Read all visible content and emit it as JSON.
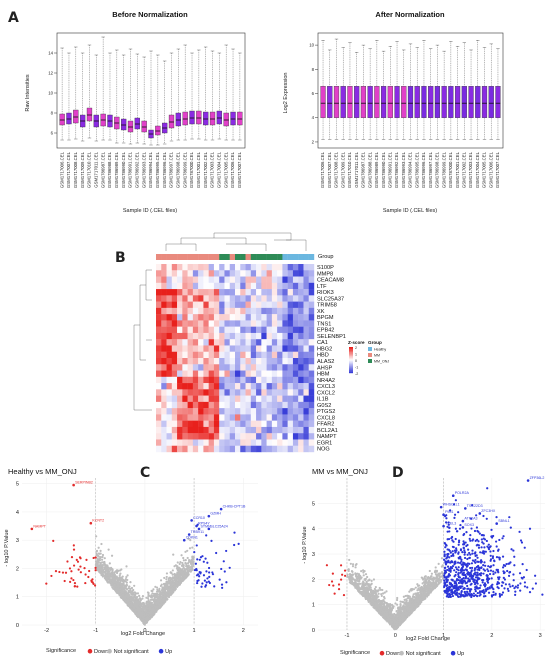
{
  "colors": {
    "box_pink": "#E040C8",
    "box_purple": "#8A2BE2",
    "box_violet": "#7A2BE0",
    "heat_high": "#E8201C",
    "heat_mid": "#FFFFFF",
    "heat_low": "#3A3FD8",
    "group_healthy": "#6BB7E0",
    "group_mm": "#E98A7E",
    "group_mm_onj": "#2E8B57",
    "volcano_down": "#E32B2B",
    "volcano_ns": "#BDBDBD",
    "volcano_up": "#2B35D8"
  },
  "panels": {
    "A": "A",
    "B": "B",
    "C": "C",
    "D": "D"
  },
  "chart_data": [
    {
      "type": "box",
      "panel": "A",
      "title": "Before Normalization",
      "xlabel": "Sample ID (.CEL files)",
      "ylabel": "Raw Intensities",
      "ylim": [
        4.5,
        16
      ],
      "yticks": [
        6,
        8,
        10,
        12,
        14
      ],
      "categories": [
        "GSM1717006.CEL",
        "GSM1717007.CEL",
        "GSM1717008.CEL",
        "GSM1717009.CEL",
        "GSM1717010.CEL",
        "GSM1717011.CEL",
        "GSM1786987.CEL",
        "GSM1786988.CEL",
        "GSM1786989.CEL",
        "GSM1786990.CEL",
        "GSM1786991.CEL",
        "GSM1786992.CEL",
        "GSM1786993.CEL",
        "GSM1786994.CEL",
        "GSM1786995.CEL",
        "GSM1786996.CEL",
        "GSM1786997.CEL",
        "GSM1786998.CEL",
        "GSM1786999.CEL",
        "GSM1787000.CEL",
        "GSM1717001.CEL",
        "GSM1717002.CEL",
        "GSM1717003.CEL",
        "GSM1717004.CEL",
        "GSM1717005.CEL",
        "GSM1717006.CEL",
        "GSM1717007.CEL"
      ],
      "boxes": [
        {
          "q1": 6.8,
          "med": 7.3,
          "q3": 7.9,
          "lo": 5.3,
          "hi": 14.5
        },
        {
          "q1": 6.9,
          "med": 7.4,
          "q3": 8.0,
          "lo": 5.3,
          "hi": 14.0
        },
        {
          "q1": 7.0,
          "med": 7.6,
          "q3": 8.3,
          "lo": 5.4,
          "hi": 14.6
        },
        {
          "q1": 6.6,
          "med": 7.2,
          "q3": 7.8,
          "lo": 5.2,
          "hi": 14.0
        },
        {
          "q1": 7.2,
          "med": 7.8,
          "q3": 8.5,
          "lo": 5.5,
          "hi": 14.8
        },
        {
          "q1": 6.6,
          "med": 7.2,
          "q3": 7.8,
          "lo": 5.2,
          "hi": 13.8
        },
        {
          "q1": 6.7,
          "med": 7.3,
          "q3": 7.9,
          "lo": 5.3,
          "hi": 15.6
        },
        {
          "q1": 6.6,
          "med": 7.2,
          "q3": 7.8,
          "lo": 5.3,
          "hi": 14.0
        },
        {
          "q1": 6.4,
          "med": 7.0,
          "q3": 7.6,
          "lo": 5.0,
          "hi": 14.3
        },
        {
          "q1": 6.3,
          "med": 6.8,
          "q3": 7.4,
          "lo": 5.0,
          "hi": 13.8
        },
        {
          "q1": 6.1,
          "med": 6.6,
          "q3": 7.2,
          "lo": 4.9,
          "hi": 14.4
        },
        {
          "q1": 6.4,
          "med": 6.9,
          "q3": 7.5,
          "lo": 5.0,
          "hi": 13.9
        },
        {
          "q1": 6.1,
          "med": 6.6,
          "q3": 7.2,
          "lo": 4.9,
          "hi": 13.6
        },
        {
          "q1": 5.5,
          "med": 5.9,
          "q3": 6.3,
          "lo": 4.8,
          "hi": 14.2
        },
        {
          "q1": 5.8,
          "med": 6.2,
          "q3": 6.7,
          "lo": 4.8,
          "hi": 13.8
        },
        {
          "q1": 6.0,
          "med": 6.5,
          "q3": 7.0,
          "lo": 4.9,
          "hi": 13.2
        },
        {
          "q1": 6.5,
          "med": 7.1,
          "q3": 7.8,
          "lo": 5.2,
          "hi": 14.0
        },
        {
          "q1": 6.7,
          "med": 7.3,
          "q3": 8.0,
          "lo": 5.3,
          "hi": 14.4
        },
        {
          "q1": 6.8,
          "med": 7.4,
          "q3": 8.1,
          "lo": 5.3,
          "hi": 14.8
        },
        {
          "q1": 6.9,
          "med": 7.5,
          "q3": 8.2,
          "lo": 5.4,
          "hi": 14.0
        },
        {
          "q1": 6.9,
          "med": 7.5,
          "q3": 8.2,
          "lo": 5.4,
          "hi": 14.3
        },
        {
          "q1": 6.8,
          "med": 7.4,
          "q3": 8.1,
          "lo": 5.3,
          "hi": 14.6
        },
        {
          "q1": 6.8,
          "med": 7.4,
          "q3": 8.1,
          "lo": 5.3,
          "hi": 14.2
        },
        {
          "q1": 6.9,
          "med": 7.5,
          "q3": 8.2,
          "lo": 5.4,
          "hi": 14.0
        },
        {
          "q1": 6.7,
          "med": 7.3,
          "q3": 8.0,
          "lo": 5.3,
          "hi": 14.8
        },
        {
          "q1": 6.8,
          "med": 7.4,
          "q3": 8.1,
          "lo": 5.3,
          "hi": 14.4
        },
        {
          "q1": 6.8,
          "med": 7.4,
          "q3": 8.1,
          "lo": 5.3,
          "hi": 14.0
        }
      ]
    },
    {
      "type": "box",
      "panel": "A",
      "title": "After Normalization",
      "xlabel": "Sample ID (.CEL files)",
      "ylabel": "Log2 Expression",
      "ylim": [
        1.5,
        11
      ],
      "yticks": [
        2,
        4,
        6,
        8,
        10
      ],
      "categories": [
        "GSM1717006.CEL",
        "GSM1717007.CEL",
        "GSM1717008.CEL",
        "GSM1717009.CEL",
        "GSM1717010.CEL",
        "GSM1717011.CEL",
        "GSM1786987.CEL",
        "GSM1786988.CEL",
        "GSM1786989.CEL",
        "GSM1786990.CEL",
        "GSM1786991.CEL",
        "GSM1786992.CEL",
        "GSM1786993.CEL",
        "GSM1786994.CEL",
        "GSM1786995.CEL",
        "GSM1786996.CEL",
        "GSM1786997.CEL",
        "GSM1786998.CEL",
        "GSM1786999.CEL",
        "GSM1787000.CEL",
        "GSM1717001.CEL",
        "GSM1717002.CEL",
        "GSM1717003.CEL",
        "GSM1717004.CEL",
        "GSM1717005.CEL",
        "GSM1717006.CEL",
        "GSM1717007.CEL"
      ],
      "boxes": [
        {
          "q1": 4.0,
          "med": 5.2,
          "q3": 6.6,
          "lo": 2.2,
          "hi": 10.4
        },
        {
          "q1": 4.0,
          "med": 5.2,
          "q3": 6.6,
          "lo": 2.2,
          "hi": 9.6
        },
        {
          "q1": 4.0,
          "med": 5.2,
          "q3": 6.6,
          "lo": 2.2,
          "hi": 10.5
        },
        {
          "q1": 4.0,
          "med": 5.2,
          "q3": 6.6,
          "lo": 2.2,
          "hi": 9.8
        },
        {
          "q1": 4.0,
          "med": 5.2,
          "q3": 6.6,
          "lo": 2.2,
          "hi": 10.2
        },
        {
          "q1": 4.0,
          "med": 5.2,
          "q3": 6.6,
          "lo": 2.2,
          "hi": 9.4
        },
        {
          "q1": 4.0,
          "med": 5.2,
          "q3": 6.6,
          "lo": 2.2,
          "hi": 10.0
        },
        {
          "q1": 4.0,
          "med": 5.2,
          "q3": 6.6,
          "lo": 2.2,
          "hi": 9.7
        },
        {
          "q1": 4.0,
          "med": 5.2,
          "q3": 6.6,
          "lo": 2.2,
          "hi": 10.4
        },
        {
          "q1": 4.0,
          "med": 5.2,
          "q3": 6.6,
          "lo": 2.2,
          "hi": 9.5
        },
        {
          "q1": 4.0,
          "med": 5.2,
          "q3": 6.6,
          "lo": 2.2,
          "hi": 9.9
        },
        {
          "q1": 4.0,
          "med": 5.2,
          "q3": 6.6,
          "lo": 2.2,
          "hi": 10.3
        },
        {
          "q1": 4.0,
          "med": 5.2,
          "q3": 6.6,
          "lo": 2.2,
          "hi": 9.6
        },
        {
          "q1": 4.0,
          "med": 5.2,
          "q3": 6.6,
          "lo": 2.2,
          "hi": 10.1
        },
        {
          "q1": 4.0,
          "med": 5.2,
          "q3": 6.6,
          "lo": 2.2,
          "hi": 9.8
        },
        {
          "q1": 4.0,
          "med": 5.2,
          "q3": 6.6,
          "lo": 2.2,
          "hi": 10.4
        },
        {
          "q1": 4.0,
          "med": 5.2,
          "q3": 6.6,
          "lo": 2.2,
          "hi": 9.7
        },
        {
          "q1": 4.0,
          "med": 5.2,
          "q3": 6.6,
          "lo": 2.2,
          "hi": 10.0
        },
        {
          "q1": 4.0,
          "med": 5.2,
          "q3": 6.6,
          "lo": 2.2,
          "hi": 9.5
        },
        {
          "q1": 4.0,
          "med": 5.2,
          "q3": 6.6,
          "lo": 2.2,
          "hi": 10.3
        },
        {
          "q1": 4.0,
          "med": 5.2,
          "q3": 6.6,
          "lo": 2.2,
          "hi": 9.9
        },
        {
          "q1": 4.0,
          "med": 5.2,
          "q3": 6.6,
          "lo": 2.2,
          "hi": 10.2
        },
        {
          "q1": 4.0,
          "med": 5.2,
          "q3": 6.6,
          "lo": 2.2,
          "hi": 9.6
        },
        {
          "q1": 4.0,
          "med": 5.2,
          "q3": 6.6,
          "lo": 2.2,
          "hi": 10.4
        },
        {
          "q1": 4.0,
          "med": 5.2,
          "q3": 6.6,
          "lo": 2.2,
          "hi": 9.8
        },
        {
          "q1": 4.0,
          "med": 5.2,
          "q3": 6.6,
          "lo": 2.2,
          "hi": 10.1
        },
        {
          "q1": 4.0,
          "med": 5.2,
          "q3": 6.6,
          "lo": 2.2,
          "hi": 9.7
        }
      ]
    },
    {
      "type": "heatmap",
      "panel": "B",
      "group_label": "Group",
      "genes": [
        "S100P",
        "MMP8",
        "CEACAM8",
        "LTF",
        "RIOK3",
        "SLC25A37",
        "TRIM58",
        "XK",
        "BPGM",
        "TNS1",
        "EPB42",
        "SELENBP1",
        "CA1",
        "HBG2",
        "HBD",
        "ALAS2",
        "AHSP",
        "HBM",
        "NR4A2",
        "CXCL3",
        "CXCL2",
        "IL1B",
        "G0S2",
        "PTGS2",
        "CXCL8",
        "FFAR2",
        "BCL2A1",
        "NAMPT",
        "EGR1",
        "NOG"
      ],
      "groups": [
        "MM",
        "MM",
        "MM",
        "MM",
        "MM",
        "MM",
        "MM",
        "MM",
        "MM",
        "MM",
        "MM",
        "MM",
        "MM_ONJ",
        "MM_ONJ",
        "MM",
        "MM_ONJ",
        "MM_ONJ",
        "MM",
        "MM_ONJ",
        "MM_ONJ",
        "MM_ONJ",
        "MM_ONJ",
        "MM_ONJ",
        "MM_ONJ",
        "Healthy",
        "Healthy",
        "Healthy",
        "Healthy",
        "Healthy",
        "Healthy"
      ],
      "legend_title": "Z-score",
      "legend_ticks": [
        "2",
        "1",
        "0",
        "-1",
        "-2"
      ],
      "group_legend_title": "Group",
      "group_legend": [
        "Healthy",
        "MM",
        "MM_ONJ"
      ]
    },
    {
      "type": "scatter",
      "panel": "C",
      "title": "Healthy vs MM_ONJ",
      "xlabel": "log2 Fold Change",
      "ylabel": "- log10 P.Value",
      "xlim": [
        -2.5,
        2.3
      ],
      "ylim": [
        0,
        5.2
      ],
      "xticks": [
        -2,
        -1,
        0,
        1,
        2
      ],
      "yticks": [
        0,
        1,
        2,
        3,
        4,
        5
      ],
      "fc_threshold": 1,
      "labels": [
        {
          "text": "SERPINB2",
          "x": -1.45,
          "y": 4.95,
          "c": "down"
        },
        {
          "text": "NAMPT",
          "x": -2.3,
          "y": 3.4,
          "c": "down"
        },
        {
          "text": "KCNT2",
          "x": -1.1,
          "y": 3.6,
          "c": "down"
        },
        {
          "text": "CHKB-CPT1B",
          "x": 1.55,
          "y": 4.1,
          "c": "up"
        },
        {
          "text": "GZMH",
          "x": 1.3,
          "y": 3.85,
          "c": "up"
        },
        {
          "text": "CCR10",
          "x": 0.95,
          "y": 3.7,
          "c": "up"
        },
        {
          "text": "RPS4Y",
          "x": 1.05,
          "y": 3.5,
          "c": "up"
        },
        {
          "text": "SLC25A24",
          "x": 1.3,
          "y": 3.4,
          "c": "up"
        },
        {
          "text": "STMN",
          "x": 1.1,
          "y": 3.4,
          "c": "up"
        },
        {
          "text": "TRBV11",
          "x": 0.9,
          "y": 3.2,
          "c": "up"
        },
        {
          "text": "CDKN1",
          "x": 0.8,
          "y": 3.0,
          "c": "up"
        }
      ],
      "legend_title": "Significance",
      "legend": [
        "Down",
        "Not significant",
        "Up"
      ]
    },
    {
      "type": "scatter",
      "panel": "D",
      "title": "MM vs MM_ONJ",
      "xlabel": "log2 Fold Change",
      "ylabel": "- log10 P.Value",
      "xlim": [
        -1.6,
        3.1
      ],
      "ylim": [
        0,
        6
      ],
      "xticks": [
        -1,
        0,
        1,
        2,
        3
      ],
      "yticks": [
        0,
        1,
        2,
        3,
        4,
        5
      ],
      "fc_threshold": 1,
      "labels": [
        {
          "text": "ZFP36L2",
          "x": 2.75,
          "y": 5.9,
          "c": "up"
        },
        {
          "text": "POLR2A",
          "x": 1.2,
          "y": 5.3,
          "c": "up"
        },
        {
          "text": "WHSC1L1",
          "x": 0.95,
          "y": 4.85,
          "c": "up"
        },
        {
          "text": "TSC22D3",
          "x": 1.45,
          "y": 4.8,
          "c": "up"
        },
        {
          "text": "ZFC3HX",
          "x": 1.75,
          "y": 4.6,
          "c": "up"
        },
        {
          "text": "PIM1",
          "x": 1.0,
          "y": 4.55,
          "c": "up"
        },
        {
          "text": "ATP2A3",
          "x": 1.4,
          "y": 4.3,
          "c": "up"
        },
        {
          "text": "SBNL1",
          "x": 2.1,
          "y": 4.2,
          "c": "up"
        },
        {
          "text": "YPEL3",
          "x": 1.0,
          "y": 4.1,
          "c": "up"
        },
        {
          "text": "SOX3",
          "x": 1.4,
          "y": 4.05,
          "c": "up"
        }
      ],
      "legend_title": "Significance",
      "legend": [
        "Down",
        "Not significant",
        "Up"
      ]
    }
  ]
}
